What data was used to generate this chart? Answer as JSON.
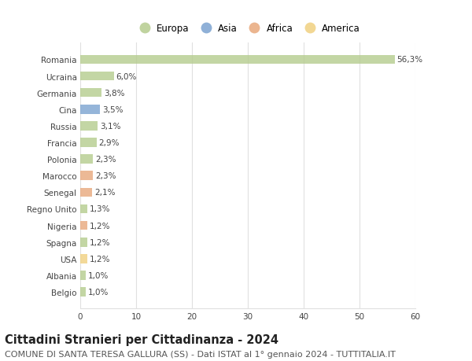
{
  "countries": [
    "Romania",
    "Ucraina",
    "Germania",
    "Cina",
    "Russia",
    "Francia",
    "Polonia",
    "Marocco",
    "Senegal",
    "Regno Unito",
    "Nigeria",
    "Spagna",
    "USA",
    "Albania",
    "Belgio"
  ],
  "values": [
    56.3,
    6.0,
    3.8,
    3.5,
    3.1,
    2.9,
    2.3,
    2.3,
    2.1,
    1.3,
    1.2,
    1.2,
    1.2,
    1.0,
    1.0
  ],
  "labels": [
    "56,3%",
    "6,0%",
    "3,8%",
    "3,5%",
    "3,1%",
    "2,9%",
    "2,3%",
    "2,3%",
    "2,1%",
    "1,3%",
    "1,2%",
    "1,2%",
    "1,2%",
    "1,0%",
    "1,0%"
  ],
  "continents": [
    "Europa",
    "Europa",
    "Europa",
    "Asia",
    "Europa",
    "Europa",
    "Europa",
    "Africa",
    "Africa",
    "Europa",
    "Africa",
    "Europa",
    "America",
    "Europa",
    "Europa"
  ],
  "colors": {
    "Europa": "#b5cc8e",
    "Asia": "#7ba3d0",
    "Africa": "#e8a87c",
    "America": "#f0d080"
  },
  "legend_order": [
    "Europa",
    "Asia",
    "Africa",
    "America"
  ],
  "title": "Cittadini Stranieri per Cittadinanza - 2024",
  "subtitle": "COMUNE DI SANTA TERESA GALLURA (SS) - Dati ISTAT al 1° gennaio 2024 - TUTTITALIA.IT",
  "xlim": [
    0,
    60
  ],
  "xticks": [
    0,
    10,
    20,
    30,
    40,
    50,
    60
  ],
  "background_color": "#ffffff",
  "grid_color": "#e0e0e0",
  "bar_height": 0.55,
  "title_fontsize": 10.5,
  "subtitle_fontsize": 8,
  "label_fontsize": 7.5,
  "tick_fontsize": 7.5,
  "legend_fontsize": 8.5
}
